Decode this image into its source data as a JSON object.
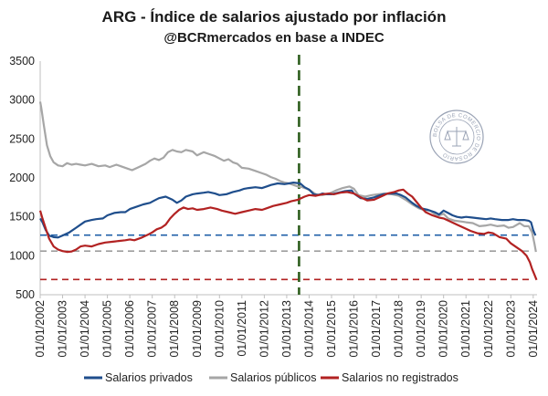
{
  "chart_data": {
    "type": "line",
    "title": "ARG - Índice de salarios ajustado por inflación",
    "subtitle": "@BCRmercados en base a INDEC",
    "watermark": "BOLSA DE COMERCIO DE ROSARIO",
    "ylim": [
      500,
      3500
    ],
    "yticks": [
      500,
      1000,
      1500,
      2000,
      2500,
      3000,
      3500
    ],
    "xlim": [
      2002.0,
      2024.17
    ],
    "xticks": [
      "01/01/2002",
      "01/01/2003",
      "01/01/2004",
      "01/01/2005",
      "01/01/2006",
      "01/01/2007",
      "01/01/2008",
      "01/01/2009",
      "01/01/2010",
      "01/01/2011",
      "01/01/2012",
      "01/01/2013",
      "01/01/2014",
      "01/01/2015",
      "01/01/2016",
      "01/01/2017",
      "01/01/2018",
      "01/01/2019",
      "01/01/2020",
      "01/01/2021",
      "01/01/2022",
      "01/01/2023",
      "01/01/2024"
    ],
    "xtick_years": [
      2002,
      2003,
      2004,
      2005,
      2006,
      2007,
      2008,
      2009,
      2010,
      2011,
      2012,
      2013,
      2014,
      2015,
      2016,
      2017,
      2018,
      2019,
      2020,
      2021,
      2022,
      2023,
      2024
    ],
    "series": [
      {
        "name": "Salarios privados",
        "color": "#1f4e8c",
        "points": [
          [
            2002.0,
            1480
          ],
          [
            2002.1,
            1430
          ],
          [
            2002.25,
            1330
          ],
          [
            2002.4,
            1260
          ],
          [
            2002.6,
            1240
          ],
          [
            2002.8,
            1235
          ],
          [
            2003.0,
            1260
          ],
          [
            2003.3,
            1300
          ],
          [
            2003.6,
            1360
          ],
          [
            2003.8,
            1400
          ],
          [
            2004.0,
            1440
          ],
          [
            2004.3,
            1460
          ],
          [
            2004.5,
            1470
          ],
          [
            2004.8,
            1480
          ],
          [
            2005.0,
            1520
          ],
          [
            2005.3,
            1550
          ],
          [
            2005.6,
            1560
          ],
          [
            2005.8,
            1560
          ],
          [
            2006.0,
            1600
          ],
          [
            2006.3,
            1630
          ],
          [
            2006.6,
            1660
          ],
          [
            2006.9,
            1680
          ],
          [
            2007.1,
            1710
          ],
          [
            2007.3,
            1740
          ],
          [
            2007.6,
            1760
          ],
          [
            2007.9,
            1720
          ],
          [
            2008.1,
            1680
          ],
          [
            2008.3,
            1710
          ],
          [
            2008.5,
            1760
          ],
          [
            2008.8,
            1790
          ],
          [
            2009.0,
            1800
          ],
          [
            2009.3,
            1810
          ],
          [
            2009.5,
            1820
          ],
          [
            2009.8,
            1800
          ],
          [
            2010.0,
            1780
          ],
          [
            2010.3,
            1790
          ],
          [
            2010.6,
            1820
          ],
          [
            2010.9,
            1840
          ],
          [
            2011.1,
            1860
          ],
          [
            2011.3,
            1870
          ],
          [
            2011.6,
            1880
          ],
          [
            2011.9,
            1870
          ],
          [
            2012.1,
            1890
          ],
          [
            2012.3,
            1910
          ],
          [
            2012.6,
            1930
          ],
          [
            2012.9,
            1920
          ],
          [
            2013.1,
            1930
          ],
          [
            2013.3,
            1940
          ],
          [
            2013.6,
            1930
          ],
          [
            2013.8,
            1880
          ],
          [
            2014.0,
            1850
          ],
          [
            2014.2,
            1790
          ],
          [
            2014.4,
            1780
          ],
          [
            2014.6,
            1800
          ],
          [
            2014.8,
            1790
          ],
          [
            2015.0,
            1790
          ],
          [
            2015.3,
            1810
          ],
          [
            2015.6,
            1830
          ],
          [
            2015.9,
            1840
          ],
          [
            2016.0,
            1800
          ],
          [
            2016.3,
            1740
          ],
          [
            2016.6,
            1730
          ],
          [
            2016.9,
            1750
          ],
          [
            2017.1,
            1770
          ],
          [
            2017.3,
            1790
          ],
          [
            2017.6,
            1800
          ],
          [
            2017.9,
            1800
          ],
          [
            2018.1,
            1780
          ],
          [
            2018.3,
            1750
          ],
          [
            2018.6,
            1680
          ],
          [
            2018.8,
            1640
          ],
          [
            2019.0,
            1610
          ],
          [
            2019.3,
            1590
          ],
          [
            2019.6,
            1560
          ],
          [
            2019.8,
            1530
          ],
          [
            2020.0,
            1580
          ],
          [
            2020.2,
            1550
          ],
          [
            2020.4,
            1520
          ],
          [
            2020.6,
            1500
          ],
          [
            2020.8,
            1490
          ],
          [
            2021.0,
            1500
          ],
          [
            2021.3,
            1490
          ],
          [
            2021.6,
            1480
          ],
          [
            2021.9,
            1470
          ],
          [
            2022.1,
            1480
          ],
          [
            2022.3,
            1470
          ],
          [
            2022.6,
            1460
          ],
          [
            2022.9,
            1460
          ],
          [
            2023.1,
            1470
          ],
          [
            2023.3,
            1460
          ],
          [
            2023.6,
            1460
          ],
          [
            2023.8,
            1450
          ],
          [
            2023.9,
            1430
          ],
          [
            2024.0,
            1330
          ],
          [
            2024.1,
            1260
          ]
        ]
      },
      {
        "name": "Salarios públicos",
        "color": "#a6a6a6",
        "points": [
          [
            2002.0,
            2980
          ],
          [
            2002.05,
            2900
          ],
          [
            2002.15,
            2700
          ],
          [
            2002.3,
            2420
          ],
          [
            2002.45,
            2280
          ],
          [
            2002.6,
            2200
          ],
          [
            2002.8,
            2160
          ],
          [
            2003.0,
            2150
          ],
          [
            2003.2,
            2190
          ],
          [
            2003.4,
            2170
          ],
          [
            2003.6,
            2180
          ],
          [
            2003.8,
            2170
          ],
          [
            2004.0,
            2160
          ],
          [
            2004.3,
            2180
          ],
          [
            2004.6,
            2150
          ],
          [
            2004.9,
            2160
          ],
          [
            2005.1,
            2140
          ],
          [
            2005.4,
            2170
          ],
          [
            2005.6,
            2150
          ],
          [
            2005.9,
            2120
          ],
          [
            2006.1,
            2100
          ],
          [
            2006.4,
            2140
          ],
          [
            2006.7,
            2180
          ],
          [
            2006.9,
            2220
          ],
          [
            2007.1,
            2250
          ],
          [
            2007.3,
            2230
          ],
          [
            2007.5,
            2260
          ],
          [
            2007.7,
            2330
          ],
          [
            2007.9,
            2360
          ],
          [
            2008.1,
            2340
          ],
          [
            2008.3,
            2330
          ],
          [
            2008.5,
            2360
          ],
          [
            2008.8,
            2340
          ],
          [
            2009.0,
            2290
          ],
          [
            2009.3,
            2330
          ],
          [
            2009.5,
            2310
          ],
          [
            2009.8,
            2280
          ],
          [
            2010.0,
            2250
          ],
          [
            2010.2,
            2220
          ],
          [
            2010.4,
            2240
          ],
          [
            2010.6,
            2200
          ],
          [
            2010.8,
            2180
          ],
          [
            2011.0,
            2130
          ],
          [
            2011.3,
            2120
          ],
          [
            2011.6,
            2090
          ],
          [
            2011.9,
            2060
          ],
          [
            2012.1,
            2040
          ],
          [
            2012.3,
            2010
          ],
          [
            2012.5,
            1990
          ],
          [
            2012.7,
            1960
          ],
          [
            2012.9,
            1940
          ],
          [
            2013.1,
            1930
          ],
          [
            2013.3,
            1910
          ],
          [
            2013.5,
            1890
          ],
          [
            2013.7,
            1880
          ],
          [
            2013.9,
            1860
          ],
          [
            2014.1,
            1830
          ],
          [
            2014.3,
            1790
          ],
          [
            2014.6,
            1780
          ],
          [
            2014.9,
            1800
          ],
          [
            2015.2,
            1840
          ],
          [
            2015.5,
            1870
          ],
          [
            2015.8,
            1890
          ],
          [
            2016.0,
            1860
          ],
          [
            2016.2,
            1780
          ],
          [
            2016.5,
            1760
          ],
          [
            2016.8,
            1780
          ],
          [
            2017.1,
            1790
          ],
          [
            2017.4,
            1800
          ],
          [
            2017.7,
            1790
          ],
          [
            2018.0,
            1770
          ],
          [
            2018.3,
            1720
          ],
          [
            2018.6,
            1660
          ],
          [
            2018.9,
            1610
          ],
          [
            2019.1,
            1590
          ],
          [
            2019.4,
            1580
          ],
          [
            2019.7,
            1510
          ],
          [
            2020.0,
            1540
          ],
          [
            2020.2,
            1480
          ],
          [
            2020.5,
            1450
          ],
          [
            2020.8,
            1440
          ],
          [
            2021.0,
            1430
          ],
          [
            2021.3,
            1420
          ],
          [
            2021.6,
            1380
          ],
          [
            2021.9,
            1390
          ],
          [
            2022.1,
            1400
          ],
          [
            2022.4,
            1380
          ],
          [
            2022.7,
            1390
          ],
          [
            2022.9,
            1360
          ],
          [
            2023.1,
            1370
          ],
          [
            2023.4,
            1420
          ],
          [
            2023.6,
            1380
          ],
          [
            2023.8,
            1380
          ],
          [
            2023.95,
            1300
          ],
          [
            2024.05,
            1160
          ],
          [
            2024.12,
            1050
          ]
        ]
      },
      {
        "name": "Salarios no registrados",
        "color": "#b22222",
        "points": [
          [
            2002.0,
            1580
          ],
          [
            2002.1,
            1480
          ],
          [
            2002.25,
            1350
          ],
          [
            2002.4,
            1220
          ],
          [
            2002.6,
            1120
          ],
          [
            2002.8,
            1080
          ],
          [
            2003.0,
            1060
          ],
          [
            2003.2,
            1050
          ],
          [
            2003.4,
            1055
          ],
          [
            2003.6,
            1080
          ],
          [
            2003.8,
            1120
          ],
          [
            2004.0,
            1130
          ],
          [
            2004.3,
            1120
          ],
          [
            2004.6,
            1150
          ],
          [
            2004.9,
            1170
          ],
          [
            2005.2,
            1180
          ],
          [
            2005.5,
            1190
          ],
          [
            2005.8,
            1200
          ],
          [
            2006.0,
            1210
          ],
          [
            2006.2,
            1200
          ],
          [
            2006.5,
            1230
          ],
          [
            2006.8,
            1270
          ],
          [
            2007.0,
            1300
          ],
          [
            2007.2,
            1340
          ],
          [
            2007.4,
            1360
          ],
          [
            2007.6,
            1400
          ],
          [
            2007.8,
            1480
          ],
          [
            2008.0,
            1540
          ],
          [
            2008.2,
            1590
          ],
          [
            2008.4,
            1620
          ],
          [
            2008.6,
            1600
          ],
          [
            2008.8,
            1610
          ],
          [
            2009.0,
            1590
          ],
          [
            2009.3,
            1600
          ],
          [
            2009.6,
            1620
          ],
          [
            2009.9,
            1600
          ],
          [
            2010.1,
            1580
          ],
          [
            2010.4,
            1560
          ],
          [
            2010.7,
            1540
          ],
          [
            2011.0,
            1560
          ],
          [
            2011.3,
            1580
          ],
          [
            2011.6,
            1600
          ],
          [
            2011.9,
            1590
          ],
          [
            2012.1,
            1610
          ],
          [
            2012.4,
            1640
          ],
          [
            2012.7,
            1660
          ],
          [
            2013.0,
            1680
          ],
          [
            2013.2,
            1700
          ],
          [
            2013.5,
            1720
          ],
          [
            2013.8,
            1760
          ],
          [
            2014.0,
            1780
          ],
          [
            2014.3,
            1770
          ],
          [
            2014.6,
            1790
          ],
          [
            2014.9,
            1800
          ],
          [
            2015.1,
            1790
          ],
          [
            2015.4,
            1810
          ],
          [
            2015.7,
            1820
          ],
          [
            2016.0,
            1800
          ],
          [
            2016.3,
            1750
          ],
          [
            2016.6,
            1710
          ],
          [
            2016.9,
            1720
          ],
          [
            2017.2,
            1760
          ],
          [
            2017.5,
            1800
          ],
          [
            2017.8,
            1820
          ],
          [
            2018.0,
            1840
          ],
          [
            2018.2,
            1850
          ],
          [
            2018.4,
            1800
          ],
          [
            2018.6,
            1760
          ],
          [
            2018.8,
            1690
          ],
          [
            2019.0,
            1620
          ],
          [
            2019.2,
            1560
          ],
          [
            2019.5,
            1520
          ],
          [
            2019.8,
            1490
          ],
          [
            2020.0,
            1480
          ],
          [
            2020.3,
            1440
          ],
          [
            2020.6,
            1400
          ],
          [
            2020.9,
            1360
          ],
          [
            2021.2,
            1320
          ],
          [
            2021.5,
            1290
          ],
          [
            2021.8,
            1280
          ],
          [
            2022.0,
            1300
          ],
          [
            2022.2,
            1290
          ],
          [
            2022.5,
            1240
          ],
          [
            2022.8,
            1220
          ],
          [
            2023.0,
            1160
          ],
          [
            2023.3,
            1100
          ],
          [
            2023.5,
            1060
          ],
          [
            2023.7,
            1000
          ],
          [
            2023.85,
            920
          ],
          [
            2023.95,
            830
          ],
          [
            2024.05,
            760
          ],
          [
            2024.15,
            690
          ]
        ]
      }
    ],
    "reference_lines": [
      {
        "series": "Salarios privados",
        "value": 1265,
        "color": "#1f5fa8",
        "style": "dashed"
      },
      {
        "series": "Salarios públicos",
        "value": 1060,
        "color": "#9e9e9e",
        "style": "dashed"
      },
      {
        "series": "Salarios no registrados",
        "value": 695,
        "color": "#b22222",
        "style": "dashed"
      }
    ],
    "vertical_marker": {
      "x": 2013.55,
      "color": "#2e5e1e",
      "style": "dashed"
    },
    "grid": false,
    "legend_position": "bottom"
  }
}
